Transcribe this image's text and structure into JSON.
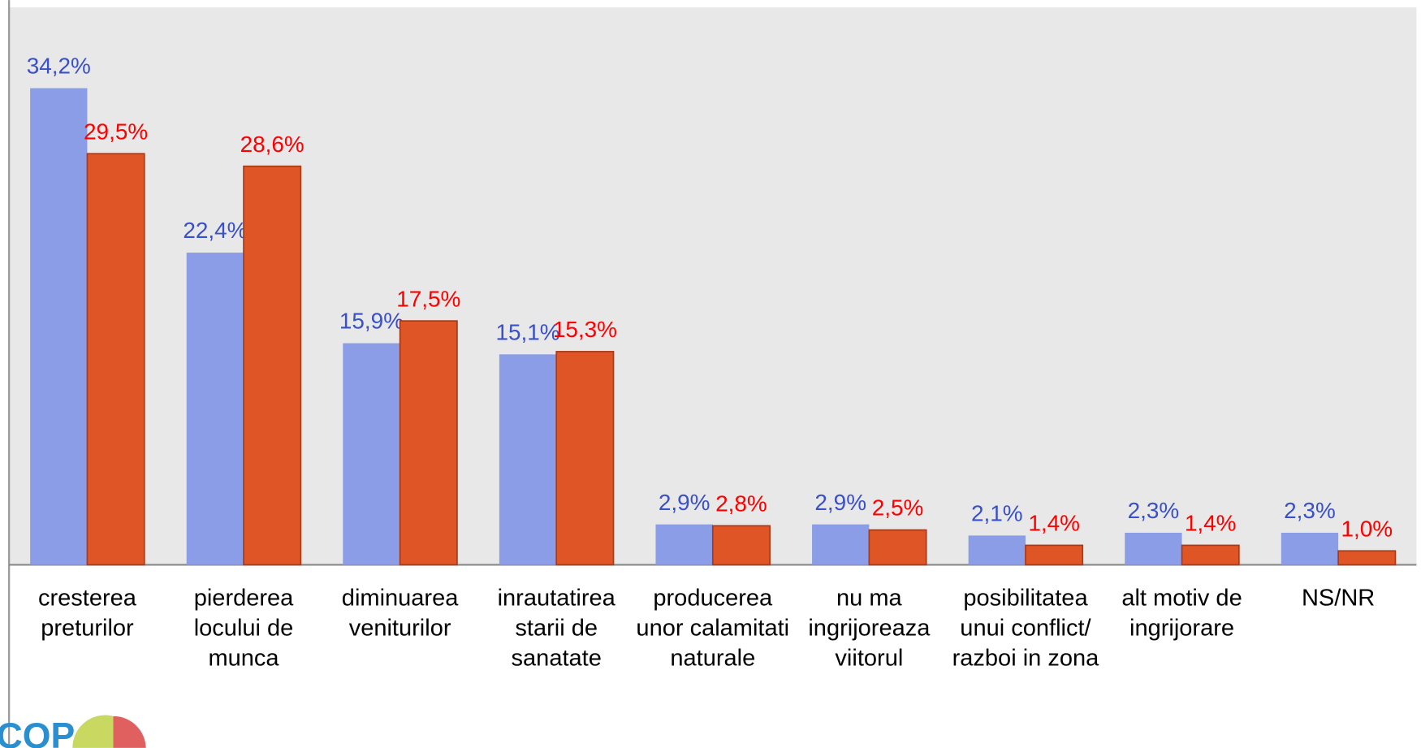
{
  "chart_data": {
    "type": "bar",
    "categories": [
      "cresterea preturilor",
      "pierderea locului de munca",
      "diminuarea veniturilor",
      "inrautatirea starii de sanatate",
      "producerea unor calamitati naturale",
      "nu ma ingrijoreaza viitorul",
      "posibilitatea unui conflict/ razboi in zona",
      "alt motiv de ingrijorare",
      "NS/NR"
    ],
    "series": [
      {
        "color": "#8a9de6",
        "label_color": "#3a50c8",
        "values": [
          34.2,
          22.4,
          15.9,
          15.1,
          2.9,
          2.9,
          2.1,
          2.3,
          2.3
        ],
        "value_labels": [
          "34,2%",
          "22,4%",
          "15,9%",
          "15,1%",
          "2,9%",
          "2,9%",
          "2,1%",
          "2,3%",
          "2,3%"
        ]
      },
      {
        "color": "#e05526",
        "label_color": "#ff0000",
        "values": [
          29.5,
          28.6,
          17.5,
          15.3,
          2.8,
          2.5,
          1.4,
          1.4,
          1.0
        ],
        "value_labels": [
          "29,5%",
          "28,6%",
          "17,5%",
          "15,3%",
          "2,8%",
          "2,5%",
          "1,4%",
          "1,4%",
          "1,0%"
        ]
      }
    ],
    "ylim": [
      0,
      40
    ]
  }
}
